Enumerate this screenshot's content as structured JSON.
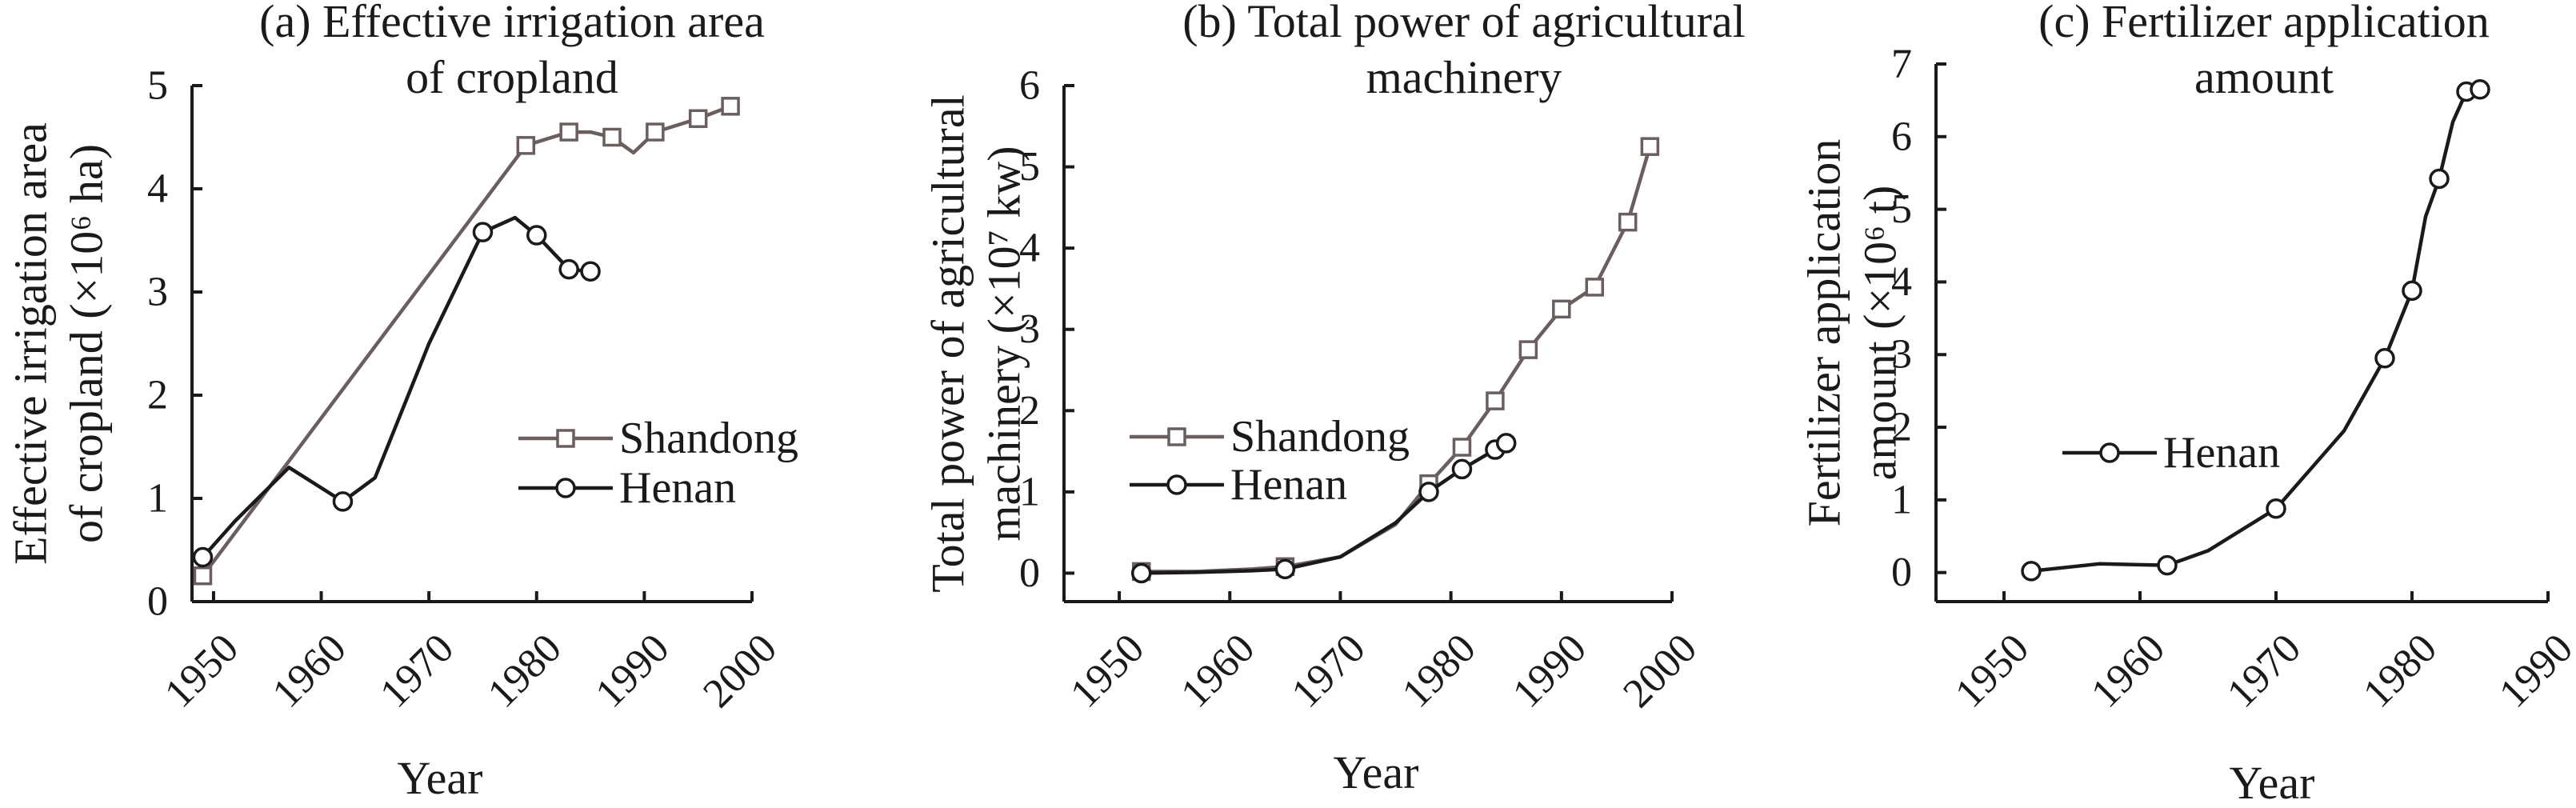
{
  "colors": {
    "shandong": "#6b5e5e",
    "henan": "#1a1a1a",
    "axis": "#1a1a1a"
  },
  "chart_data": [
    {
      "type": "line",
      "title": [
        "(a) Effective irrigation area",
        "of cropland"
      ],
      "xlabel": "Year",
      "ylabel": [
        "Effective irrigation area",
        "of cropland (×10⁶ ha)"
      ],
      "xlim": [
        1948,
        2000
      ],
      "ylim": [
        0,
        5
      ],
      "xticks": [
        1950,
        1960,
        1970,
        1980,
        1990,
        2000
      ],
      "yticks": [
        0,
        1,
        2,
        3,
        4,
        5
      ],
      "legend_position": "center-right",
      "series": [
        {
          "name": "Shandong",
          "marker": "square",
          "color": "#6b5e5e",
          "line": [
            [
              1949,
              0.25
            ],
            [
              1979,
              4.42
            ],
            [
              1983,
              4.55
            ],
            [
              1985,
              4.55
            ],
            [
              1987,
              4.5
            ],
            [
              1989,
              4.35
            ],
            [
              1991,
              4.55
            ],
            [
              1995,
              4.68
            ],
            [
              1998,
              4.8
            ]
          ],
          "markers": [
            [
              1949,
              0.25
            ],
            [
              1979,
              4.42
            ],
            [
              1983,
              4.55
            ],
            [
              1987,
              4.5
            ],
            [
              1991,
              4.55
            ],
            [
              1995,
              4.68
            ],
            [
              1998,
              4.8
            ]
          ]
        },
        {
          "name": "Henan",
          "marker": "circle",
          "color": "#1a1a1a",
          "line": [
            [
              1949,
              0.43
            ],
            [
              1952,
              0.78
            ],
            [
              1957,
              1.3
            ],
            [
              1962,
              0.97
            ],
            [
              1965,
              1.2
            ],
            [
              1970,
              2.5
            ],
            [
              1975,
              3.58
            ],
            [
              1978,
              3.72
            ],
            [
              1980,
              3.55
            ],
            [
              1983,
              3.22
            ],
            [
              1985,
              3.2
            ]
          ],
          "markers": [
            [
              1949,
              0.43
            ],
            [
              1962,
              0.97
            ],
            [
              1975,
              3.58
            ],
            [
              1980,
              3.55
            ],
            [
              1983,
              3.22
            ],
            [
              1985,
              3.2
            ]
          ]
        }
      ]
    },
    {
      "type": "line",
      "title": [
        "(b) Total power of agricultural",
        "machinery"
      ],
      "xlabel": "Year",
      "ylabel": [
        "Total power of agricultural",
        "machinery (×10⁷ kw)"
      ],
      "xlim": [
        1945,
        2000
      ],
      "ylim": [
        -0.35,
        6
      ],
      "xticks": [
        1950,
        1960,
        1970,
        1980,
        1990,
        2000
      ],
      "yticks": [
        0,
        1,
        2,
        3,
        4,
        5,
        6
      ],
      "legend_position": "left",
      "series": [
        {
          "name": "Shandong",
          "marker": "square",
          "color": "#6b5e5e",
          "line": [
            [
              1952,
              0.02
            ],
            [
              1957,
              0.02
            ],
            [
              1962,
              0.05
            ],
            [
              1965,
              0.08
            ],
            [
              1970,
              0.2
            ],
            [
              1975,
              0.6
            ],
            [
              1978,
              1.1
            ],
            [
              1981,
              1.55
            ],
            [
              1984,
              2.12
            ],
            [
              1987,
              2.75
            ],
            [
              1990,
              3.25
            ],
            [
              1993,
              3.52
            ],
            [
              1996,
              4.32
            ],
            [
              1998,
              5.25
            ]
          ],
          "markers": [
            [
              1952,
              0.02
            ],
            [
              1965,
              0.08
            ],
            [
              1978,
              1.1
            ],
            [
              1981,
              1.55
            ],
            [
              1984,
              2.12
            ],
            [
              1987,
              2.75
            ],
            [
              1990,
              3.25
            ],
            [
              1993,
              3.52
            ],
            [
              1996,
              4.32
            ],
            [
              1998,
              5.25
            ]
          ]
        },
        {
          "name": "Henan",
          "marker": "circle",
          "color": "#1a1a1a",
          "line": [
            [
              1952,
              0.0
            ],
            [
              1957,
              0.01
            ],
            [
              1962,
              0.03
            ],
            [
              1965,
              0.05
            ],
            [
              1970,
              0.2
            ],
            [
              1975,
              0.62
            ],
            [
              1978,
              1.0
            ],
            [
              1981,
              1.28
            ],
            [
              1984,
              1.52
            ],
            [
              1985,
              1.6
            ]
          ],
          "markers": [
            [
              1952,
              0.0
            ],
            [
              1965,
              0.05
            ],
            [
              1978,
              1.0
            ],
            [
              1981,
              1.28
            ],
            [
              1984,
              1.52
            ],
            [
              1985,
              1.6
            ]
          ]
        }
      ]
    },
    {
      "type": "line",
      "title": [
        "(c) Fertilizer application",
        "amount"
      ],
      "xlabel": "Year",
      "ylabel": [
        "Fertilizer application",
        "amount (×10⁶ t)"
      ],
      "xlim": [
        1945,
        1990
      ],
      "ylim": [
        -0.4,
        7
      ],
      "xticks": [
        1950,
        1960,
        1970,
        1980,
        1990
      ],
      "yticks": [
        0,
        1,
        2,
        3,
        4,
        5,
        6,
        7
      ],
      "legend_position": "left",
      "series": [
        {
          "name": "Henan",
          "marker": "circle",
          "color": "#1a1a1a",
          "line": [
            [
              1952,
              0.02
            ],
            [
              1957,
              0.12
            ],
            [
              1962,
              0.1
            ],
            [
              1965,
              0.3
            ],
            [
              1970,
              0.88
            ],
            [
              1975,
              1.95
            ],
            [
              1978,
              2.95
            ],
            [
              1980,
              3.88
            ],
            [
              1981,
              4.9
            ],
            [
              1982,
              5.42
            ],
            [
              1983,
              6.2
            ],
            [
              1984,
              6.62
            ],
            [
              1985,
              6.65
            ]
          ],
          "markers": [
            [
              1952,
              0.02
            ],
            [
              1962,
              0.1
            ],
            [
              1970,
              0.88
            ],
            [
              1978,
              2.95
            ],
            [
              1980,
              3.88
            ],
            [
              1982,
              5.42
            ],
            [
              1984,
              6.62
            ],
            [
              1985,
              6.65
            ]
          ]
        }
      ]
    }
  ]
}
